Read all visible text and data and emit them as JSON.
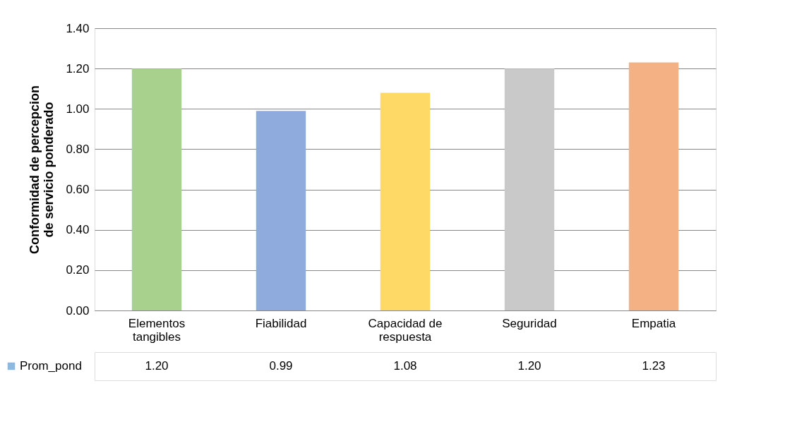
{
  "chart_data": {
    "type": "bar",
    "ylabel": "Conformidad de percepcion de servicio ponderado",
    "categories": [
      "Elementos tangibles",
      "Fiabilidad",
      "Capacidad de respuesta",
      "Seguridad",
      "Empatia"
    ],
    "series": [
      {
        "name": "Prom_pond",
        "color": "#5b9bd5",
        "values": [
          1.2,
          0.99,
          1.08,
          1.2,
          1.23
        ],
        "colors": [
          "#a9d18e",
          "#8faadc",
          "#ffd966",
          "#c9c9c9",
          "#f4b183"
        ],
        "value_labels": [
          "1.20",
          "0.99",
          "1.08",
          "1.20",
          "1.23"
        ]
      }
    ],
    "ylim": [
      0,
      1.4
    ],
    "yticks": [
      {
        "value": 0,
        "label": "0.00"
      },
      {
        "value": 0.2,
        "label": "0.20"
      },
      {
        "value": 0.4,
        "label": "0.40"
      },
      {
        "value": 0.6,
        "label": "0.60"
      },
      {
        "value": 0.8,
        "label": "0.80"
      },
      {
        "value": 1.0,
        "label": "1.00"
      },
      {
        "value": 1.2,
        "label": "1.20"
      },
      {
        "value": 1.4,
        "label": "1.40"
      }
    ],
    "grid": "y"
  }
}
